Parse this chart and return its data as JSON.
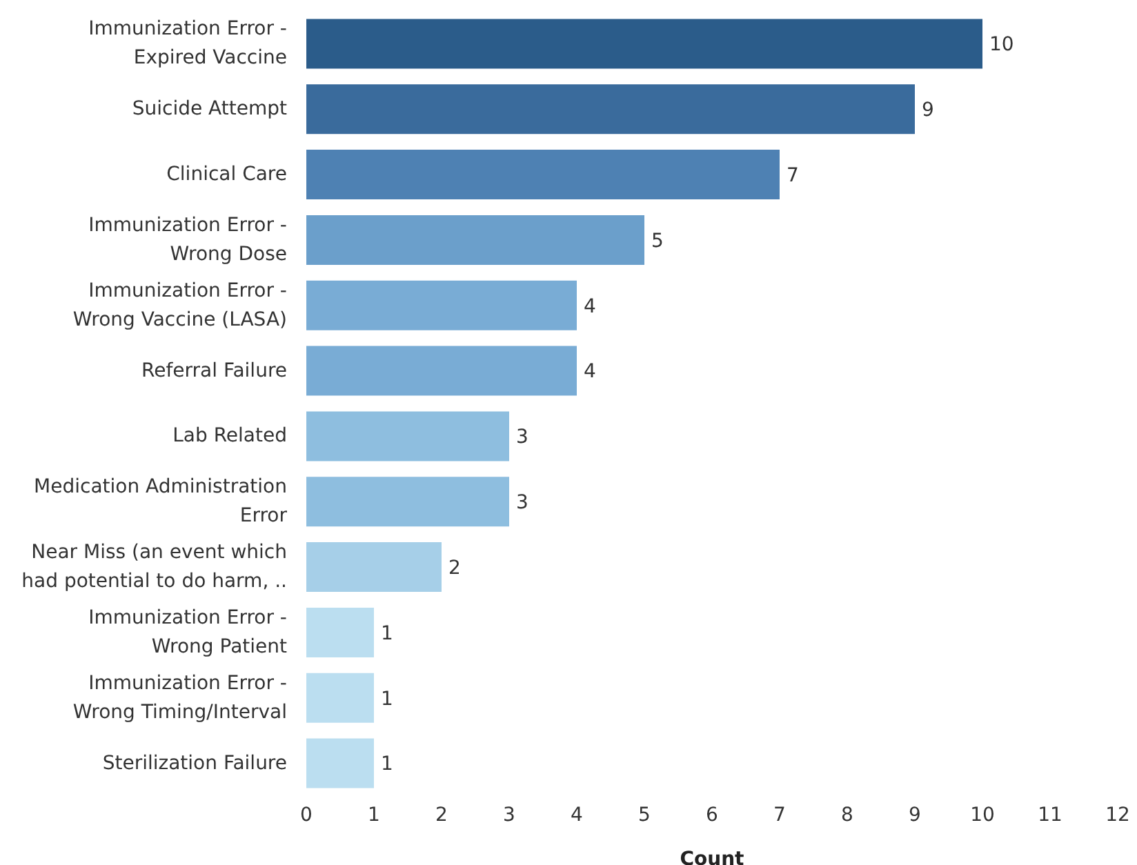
{
  "chart_data": {
    "type": "bar",
    "orientation": "horizontal",
    "xlabel": "Count",
    "categories": [
      "Immunization Error - Expired Vaccine",
      "Suicide Attempt",
      "Clinical Care",
      "Immunization Error - Wrong Dose",
      "Immunization Error - Wrong Vaccine (LASA)",
      "Referral Failure",
      "Lab Related",
      "Medication Administration Error",
      "Near Miss (an event which had potential to do harm, ..",
      "Immunization Error - Wrong Patient",
      "Immunization Error - Wrong Timing/Interval",
      "Sterilization Failure"
    ],
    "values": [
      10,
      9,
      7,
      5,
      4,
      4,
      3,
      3,
      2,
      1,
      1,
      1
    ],
    "colors": [
      "#2b5c8a",
      "#3a6b9c",
      "#4e81b3",
      "#6b9fcb",
      "#79acd5",
      "#79acd5",
      "#8ebedf",
      "#8ebedf",
      "#a6cfe8",
      "#bbdef0",
      "#bbdef0",
      "#bbdef0"
    ],
    "xlim": [
      0,
      12
    ],
    "xticks": [
      0,
      1,
      2,
      3,
      4,
      5,
      6,
      7,
      8,
      9,
      10,
      11,
      12
    ],
    "grid": false,
    "legend": false,
    "data_labels": true
  }
}
